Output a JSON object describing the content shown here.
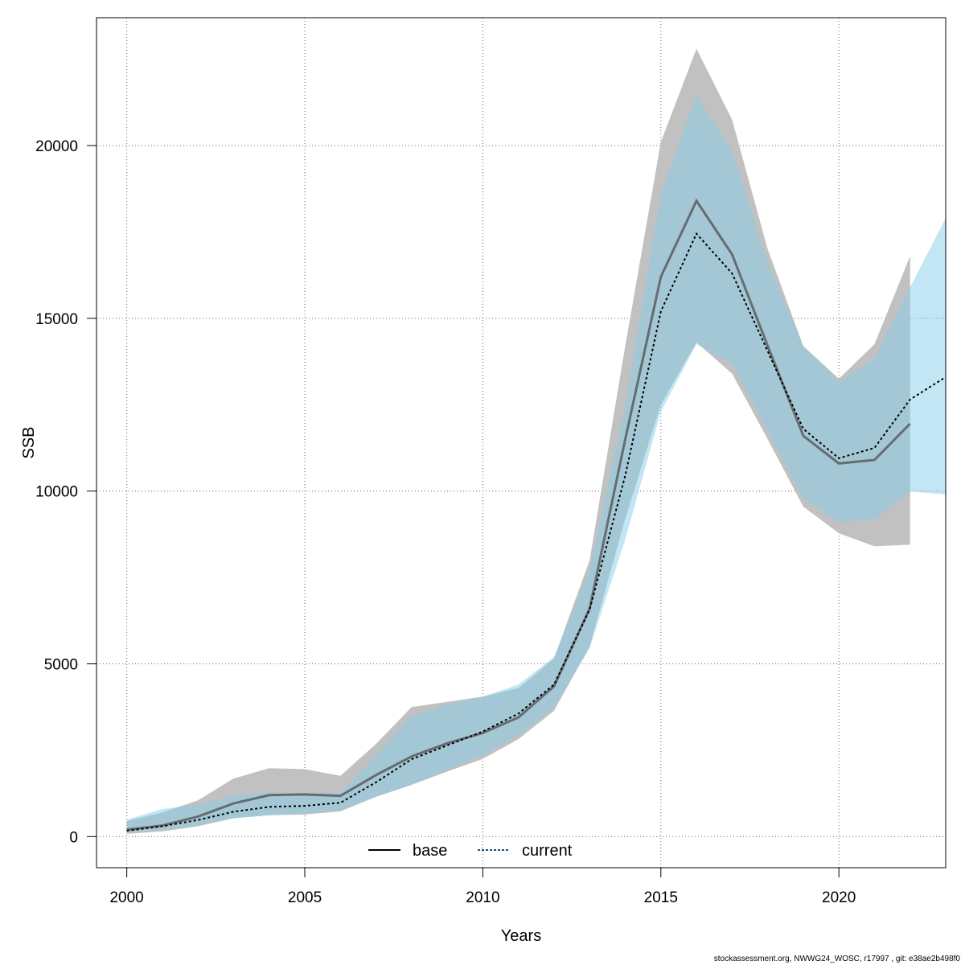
{
  "chart_data": {
    "type": "line",
    "xlabel": "Years",
    "ylabel": "SSB",
    "xlim": [
      1999.15,
      2023.0
    ],
    "ylim": [
      -900,
      23700
    ],
    "xticks": [
      2000,
      2005,
      2010,
      2015,
      2020
    ],
    "yticks": [
      0,
      5000,
      10000,
      15000,
      20000
    ],
    "grid": true,
    "legend_position": "bottom",
    "series": [
      {
        "name": "base",
        "line_style": "solid",
        "line_color": "#555555",
        "band_color": "#bebebe",
        "x": [
          2000,
          2001,
          2002,
          2003,
          2004,
          2005,
          2006,
          2007,
          2008,
          2009,
          2010,
          2011,
          2012,
          2013,
          2014,
          2015,
          2016,
          2017,
          2018,
          2019,
          2020,
          2021,
          2022
        ],
        "y": [
          200,
          320,
          580,
          960,
          1200,
          1220,
          1180,
          1780,
          2320,
          2700,
          3000,
          3450,
          4350,
          6600,
          11500,
          16200,
          18400,
          16850,
          14200,
          11600,
          10800,
          10900,
          11950
        ],
        "lower": [
          80,
          150,
          300,
          530,
          620,
          640,
          730,
          1150,
          1500,
          1880,
          2250,
          2820,
          3640,
          5500,
          9200,
          12500,
          14300,
          13400,
          11500,
          9550,
          8780,
          8400,
          8450
        ],
        "upper": [
          450,
          700,
          1050,
          1680,
          1980,
          1950,
          1760,
          2680,
          3750,
          3900,
          4050,
          4300,
          5150,
          8000,
          14200,
          20100,
          22800,
          20750,
          17000,
          14200,
          13250,
          14250,
          16800
        ]
      },
      {
        "name": "current",
        "line_style": "dotted",
        "line_color": "#000000",
        "band_color": "#87ceeb",
        "x": [
          2000,
          2001,
          2002,
          2003,
          2004,
          2005,
          2006,
          2007,
          2008,
          2009,
          2010,
          2011,
          2012,
          2013,
          2014,
          2015,
          2016,
          2017,
          2018,
          2019,
          2020,
          2021,
          2022,
          2023
        ],
        "y": [
          170,
          300,
          480,
          720,
          860,
          890,
          980,
          1570,
          2240,
          2640,
          3040,
          3560,
          4400,
          6570,
          10450,
          15200,
          17450,
          16300,
          14050,
          11800,
          10950,
          11250,
          12650,
          13300
        ],
        "lower": [
          120,
          190,
          340,
          530,
          620,
          660,
          770,
          1150,
          1500,
          1930,
          2360,
          2920,
          3740,
          5450,
          8600,
          12300,
          14250,
          13700,
          11750,
          9780,
          9100,
          9180,
          9990,
          9900
        ],
        "upper": [
          490,
          800,
          920,
          1190,
          1270,
          1270,
          1280,
          2350,
          3500,
          3820,
          4050,
          4400,
          5200,
          7750,
          12450,
          18600,
          21450,
          19850,
          16600,
          14200,
          13150,
          13850,
          15900,
          17900
        ]
      }
    ]
  },
  "footer_text": "stockassessment.org, NWWG24_WOSC, r17997 , git: e38ae2b498f0"
}
